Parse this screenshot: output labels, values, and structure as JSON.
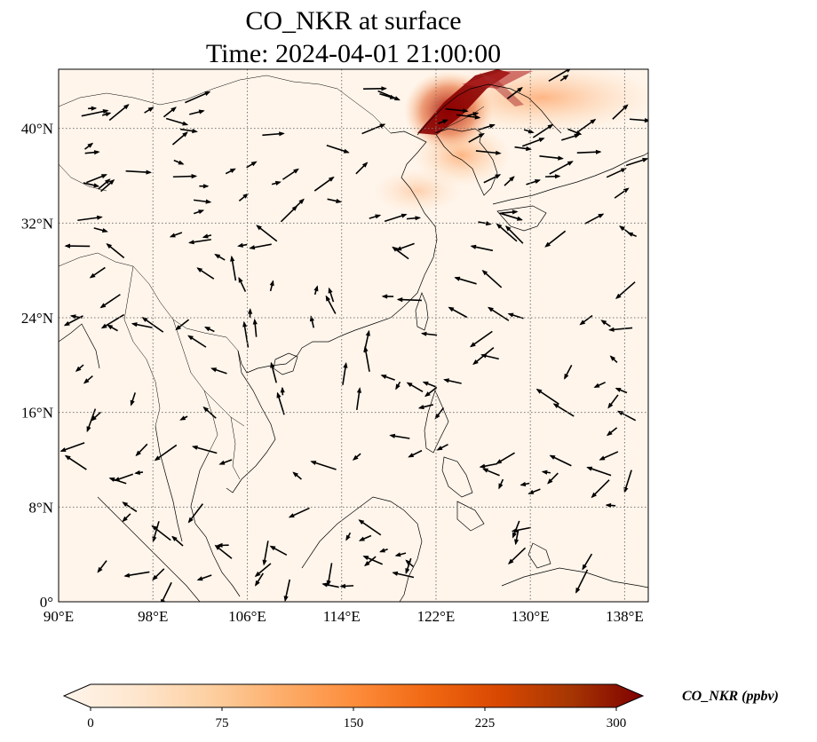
{
  "title": {
    "line1": "CO_NKR at surface",
    "line2": "Time: 2024-04-01 21:00:00"
  },
  "map": {
    "lon_range": [
      90,
      140
    ],
    "lat_range": [
      0,
      45
    ],
    "x_ticks": [
      {
        "value": 90,
        "label": "90°E"
      },
      {
        "value": 98,
        "label": "98°E"
      },
      {
        "value": 106,
        "label": "106°E"
      },
      {
        "value": 114,
        "label": "114°E"
      },
      {
        "value": 122,
        "label": "122°E"
      },
      {
        "value": 130,
        "label": "130°E"
      },
      {
        "value": 138,
        "label": "138°E"
      }
    ],
    "y_ticks": [
      {
        "value": 0,
        "label": "0°"
      },
      {
        "value": 8,
        "label": "8°N"
      },
      {
        "value": 16,
        "label": "16°N"
      },
      {
        "value": 24,
        "label": "24°N"
      },
      {
        "value": 32,
        "label": "32°N"
      },
      {
        "value": 40,
        "label": "40°N"
      }
    ],
    "gridlines": true,
    "background_color": "#fff5eb",
    "plume_color": "#8b0000"
  },
  "colorbar": {
    "min": 0,
    "max": 300,
    "ticks": [
      {
        "value": 0,
        "label": "0"
      },
      {
        "value": 75,
        "label": "75"
      },
      {
        "value": 150,
        "label": "150"
      },
      {
        "value": 225,
        "label": "225"
      },
      {
        "value": 300,
        "label": "300"
      }
    ],
    "label": "CO_NKR (ppbv)",
    "colormap": [
      "#fff5eb",
      "#fee6ce",
      "#fdd0a2",
      "#fdae6b",
      "#fd8d3c",
      "#f16913",
      "#d94801",
      "#a63603",
      "#7f0000"
    ]
  },
  "wind_field": {
    "arrow_count": 230
  }
}
